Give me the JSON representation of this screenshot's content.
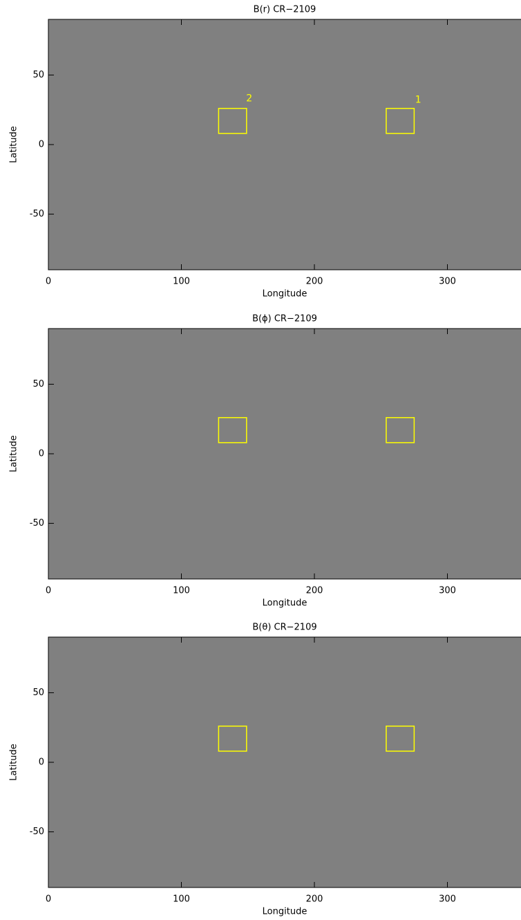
{
  "chart_data": [
    {
      "type": "image",
      "title": "B(r)   CR−2109",
      "xlabel": "Longitude",
      "ylabel": "Latitude",
      "xlim": [
        0,
        360
      ],
      "ylim": [
        -90,
        90
      ],
      "xticks": [
        0,
        100,
        200,
        300
      ],
      "yticks": [
        -50,
        0,
        50
      ],
      "boxes": [
        {
          "lon": [
            128,
            149
          ],
          "lat": [
            8,
            26
          ]
        },
        {
          "lon": [
            254,
            275
          ],
          "lat": [
            8,
            26
          ]
        }
      ],
      "box_color": "#ffff00",
      "annotations": [
        {
          "text": "2",
          "lon": 151,
          "lat": 33
        },
        {
          "text": "1",
          "lon": 278,
          "lat": 32
        }
      ]
    },
    {
      "type": "image",
      "title": "B(ϕ)   CR−2109",
      "xlabel": "Longitude",
      "ylabel": "Latitude",
      "xlim": [
        0,
        360
      ],
      "ylim": [
        -90,
        90
      ],
      "xticks": [
        0,
        100,
        200,
        300
      ],
      "yticks": [
        -50,
        0,
        50
      ],
      "boxes": [
        {
          "lon": [
            128,
            149
          ],
          "lat": [
            8,
            26
          ]
        },
        {
          "lon": [
            254,
            275
          ],
          "lat": [
            8,
            26
          ]
        }
      ],
      "box_color": "#ffff00"
    },
    {
      "type": "image",
      "title": "B(θ)   CR−2109",
      "xlabel": "Longitude",
      "ylabel": "Latitude",
      "xlim": [
        0,
        360
      ],
      "ylim": [
        -90,
        90
      ],
      "xticks": [
        0,
        100,
        200,
        300
      ],
      "yticks": [
        -50,
        0,
        50
      ],
      "boxes": [
        {
          "lon": [
            128,
            149
          ],
          "lat": [
            8,
            26
          ]
        },
        {
          "lon": [
            254,
            275
          ],
          "lat": [
            8,
            26
          ]
        }
      ],
      "box_color": "#ffff00"
    }
  ]
}
